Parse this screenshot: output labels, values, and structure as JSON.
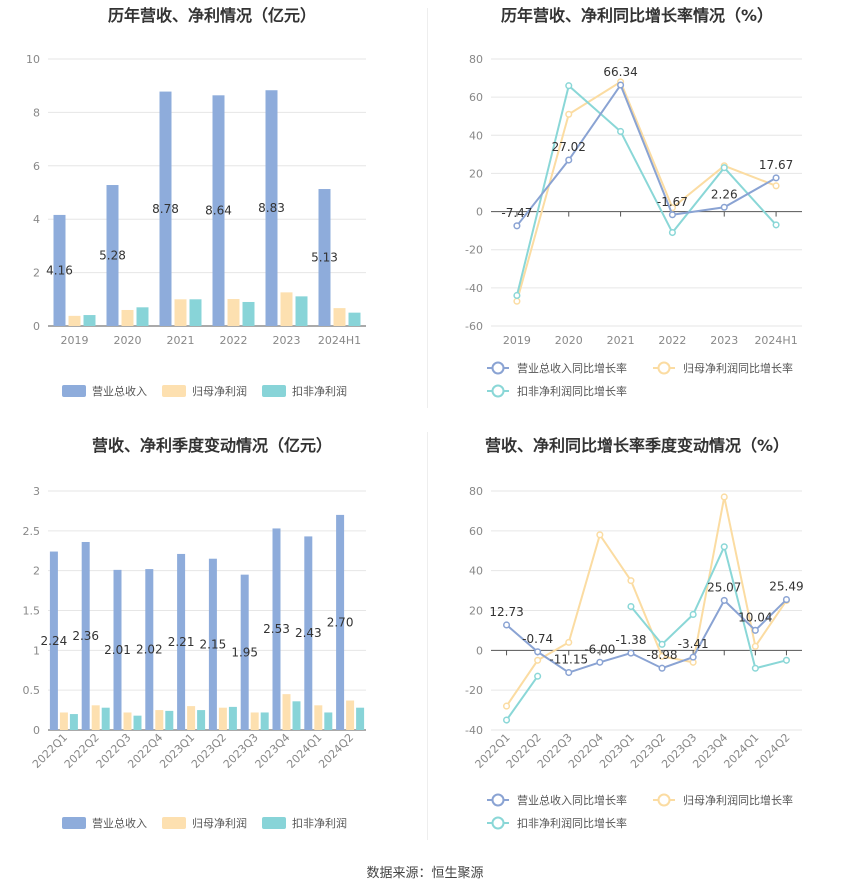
{
  "source_label": "数据来源：恒生聚源",
  "colors": {
    "revenue": "#8eacdb",
    "net_parent": "#fde0b0",
    "net_deducted": "#88d4d8",
    "rev_line": "#8aa3d3",
    "net_parent_line": "#fbdca2",
    "net_deducted_line": "#8ad7d7"
  },
  "chart_data": [
    {
      "id": "annual-bar",
      "type": "bar",
      "title": "历年营收、净利情况（亿元）",
      "categories": [
        "2019",
        "2020",
        "2021",
        "2022",
        "2023",
        "2024H1"
      ],
      "ylim": [
        0,
        10
      ],
      "yticks": [
        0,
        2,
        4,
        6,
        8,
        10
      ],
      "series": [
        {
          "name": "营业总收入",
          "color_key": "revenue",
          "values": [
            4.16,
            5.28,
            8.78,
            8.64,
            8.83,
            5.13
          ],
          "labels": [
            "4.16",
            "5.28",
            "8.78",
            "8.64",
            "8.83",
            "5.13"
          ]
        },
        {
          "name": "归母净利润",
          "color_key": "net_parent",
          "values": [
            0.38,
            0.6,
            1.0,
            1.01,
            1.26,
            0.67
          ]
        },
        {
          "name": "扣非净利润",
          "color_key": "net_deducted",
          "values": [
            0.41,
            0.7,
            1.0,
            0.9,
            1.11,
            0.5
          ]
        }
      ]
    },
    {
      "id": "annual-growth",
      "type": "line",
      "title": "历年营收、净利同比增长率情况（%）",
      "categories": [
        "2019",
        "2020",
        "2021",
        "2022",
        "2023",
        "2024H1"
      ],
      "ylim": [
        -60,
        80
      ],
      "yticks": [
        -60,
        -40,
        -20,
        0,
        20,
        40,
        60,
        80
      ],
      "series": [
        {
          "name": "营业总收入同比增长率",
          "color_key": "rev_line",
          "values": [
            -7.47,
            27.02,
            66.34,
            -1.67,
            2.26,
            17.67
          ],
          "labels": [
            "-7.47",
            "27.02",
            "66.34",
            "-1.67",
            "2.26",
            "17.67"
          ]
        },
        {
          "name": "归母净利润同比增长率",
          "color_key": "net_parent_line",
          "values": [
            -47,
            51,
            68,
            2,
            24,
            13.5
          ]
        },
        {
          "name": "扣非净利润同比增长率",
          "color_key": "net_deducted_line",
          "values": [
            -44,
            66,
            42,
            -11,
            23,
            -7
          ]
        }
      ]
    },
    {
      "id": "quarterly-bar",
      "type": "bar",
      "title": "营收、净利季度变动情况（亿元）",
      "categories": [
        "2022Q1",
        "2022Q2",
        "2022Q3",
        "2022Q4",
        "2023Q1",
        "2023Q2",
        "2023Q3",
        "2023Q4",
        "2024Q1",
        "2024Q2"
      ],
      "ylim": [
        0,
        3
      ],
      "yticks": [
        0,
        0.5,
        1,
        1.5,
        2,
        2.5,
        3
      ],
      "series": [
        {
          "name": "营业总收入",
          "color_key": "revenue",
          "values": [
            2.24,
            2.36,
            2.01,
            2.02,
            2.21,
            2.15,
            1.95,
            2.53,
            2.43,
            2.7
          ],
          "labels": [
            "2.24",
            "2.36",
            "2.01",
            "2.02",
            "2.21",
            "2.15",
            "1.95",
            "2.53",
            "2.43",
            "2.70"
          ]
        },
        {
          "name": "归母净利润",
          "color_key": "net_parent",
          "values": [
            0.22,
            0.31,
            0.22,
            0.25,
            0.3,
            0.28,
            0.22,
            0.45,
            0.31,
            0.37
          ]
        },
        {
          "name": "扣非净利润",
          "color_key": "net_deducted",
          "values": [
            0.2,
            0.28,
            0.18,
            0.24,
            0.25,
            0.29,
            0.22,
            0.36,
            0.22,
            0.28
          ]
        }
      ]
    },
    {
      "id": "quarterly-growth",
      "type": "line",
      "title": "营收、净利同比增长率季度变动情况（%）",
      "categories": [
        "2022Q1",
        "2022Q2",
        "2022Q3",
        "2022Q4",
        "2023Q1",
        "2023Q2",
        "2023Q3",
        "2023Q4",
        "2024Q1",
        "2024Q2"
      ],
      "ylim": [
        -40,
        80
      ],
      "yticks": [
        -40,
        -20,
        0,
        20,
        40,
        60,
        80
      ],
      "series": [
        {
          "name": "营业总收入同比增长率",
          "color_key": "rev_line",
          "values": [
            12.73,
            -0.74,
            -11.15,
            -6.0,
            -1.38,
            -8.98,
            -3.41,
            25.07,
            10.04,
            25.49
          ],
          "labels": [
            "12.73",
            "-0.74",
            "-11.15",
            "-6.00",
            "-1.38",
            "-8.98",
            "-3.41",
            "25.07",
            "10.04",
            "25.49"
          ]
        },
        {
          "name": "归母净利润同比增长率",
          "color_key": "net_parent_line",
          "values": [
            -28,
            -5,
            4,
            58,
            35,
            -3,
            -6,
            77,
            2,
            25
          ]
        },
        {
          "name": "扣非净利润同比增长率",
          "color_key": "net_deducted_line",
          "values": [
            -35,
            -13,
            null,
            null,
            22,
            3,
            18,
            52,
            -9,
            -5
          ]
        }
      ]
    }
  ]
}
